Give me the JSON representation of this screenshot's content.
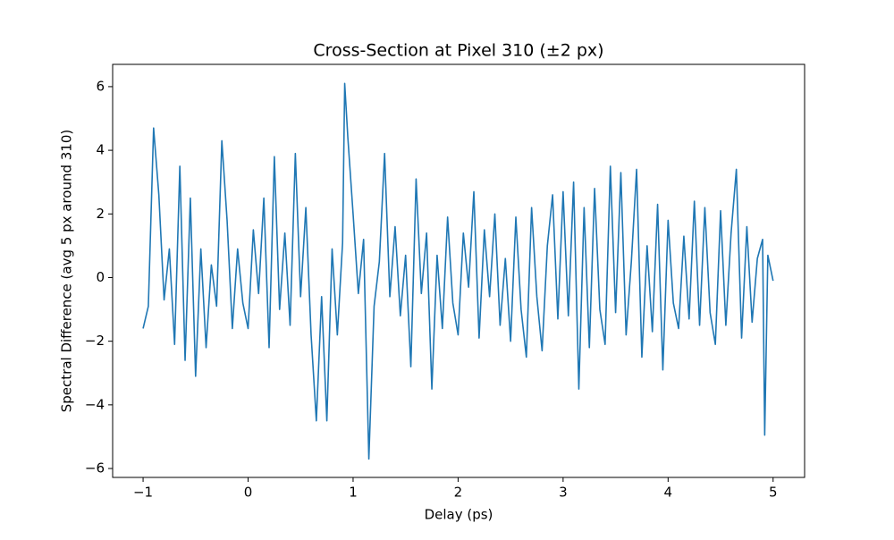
{
  "chart_data": {
    "type": "line",
    "title": "Cross-Section at Pixel 310 (±2 px)",
    "x_label": "Delay (ps)",
    "y_label": "Spectral Difference (avg 5 px around 310)",
    "x": [
      -1,
      -0.95,
      -0.9,
      -0.85,
      -0.8,
      -0.75,
      -0.7,
      -0.65,
      -0.6,
      -0.55,
      -0.5,
      -0.45,
      -0.4,
      -0.35,
      -0.3,
      -0.25,
      -0.2,
      -0.15,
      -0.1,
      -0.05,
      0,
      0.05,
      0.1,
      0.15,
      0.2,
      0.25,
      0.3,
      0.35,
      0.4,
      0.45,
      0.5,
      0.55,
      0.6,
      0.65,
      0.7,
      0.75,
      0.8,
      0.85,
      0.9,
      0.92,
      0.95,
      1.0,
      1.05,
      1.1,
      1.15,
      1.2,
      1.25,
      1.3,
      1.35,
      1.4,
      1.45,
      1.5,
      1.55,
      1.6,
      1.65,
      1.7,
      1.75,
      1.8,
      1.85,
      1.9,
      1.95,
      2.0,
      2.05,
      2.1,
      2.15,
      2.2,
      2.25,
      2.3,
      2.35,
      2.4,
      2.45,
      2.5,
      2.55,
      2.6,
      2.65,
      2.7,
      2.75,
      2.8,
      2.85,
      2.9,
      2.95,
      3.0,
      3.05,
      3.1,
      3.15,
      3.2,
      3.25,
      3.3,
      3.35,
      3.4,
      3.45,
      3.5,
      3.55,
      3.6,
      3.65,
      3.7,
      3.75,
      3.8,
      3.85,
      3.9,
      3.95,
      4.0,
      4.05,
      4.1,
      4.15,
      4.2,
      4.25,
      4.3,
      4.35,
      4.4,
      4.45,
      4.5,
      4.55,
      4.6,
      4.65,
      4.7,
      4.75,
      4.8,
      4.85,
      4.9,
      4.92,
      4.95,
      5.0
    ],
    "series": [
      {
        "color": "#1f77b4",
        "values": [
          -1.6,
          -0.9,
          4.7,
          2.6,
          -0.7,
          0.9,
          -2.1,
          3.5,
          -2.6,
          2.5,
          -3.1,
          0.9,
          -2.2,
          0.4,
          -0.9,
          4.3,
          1.8,
          -1.6,
          0.9,
          -0.8,
          -1.6,
          1.5,
          -0.5,
          2.5,
          -2.2,
          3.8,
          -1.0,
          1.4,
          -1.5,
          3.9,
          -0.6,
          2.2,
          -1.8,
          -4.5,
          -0.6,
          -4.5,
          0.9,
          -1.8,
          1.1,
          6.1,
          4.4,
          2.0,
          -0.5,
          1.2,
          -5.7,
          -0.9,
          0.5,
          3.9,
          -0.6,
          1.6,
          -1.2,
          0.7,
          -2.8,
          3.1,
          -0.5,
          1.4,
          -3.5,
          0.7,
          -1.6,
          1.9,
          -0.8,
          -1.8,
          1.4,
          -0.3,
          2.7,
          -1.9,
          1.5,
          -0.6,
          2.0,
          -1.5,
          0.6,
          -2.0,
          1.9,
          -1.0,
          -2.5,
          2.2,
          -0.6,
          -2.3,
          1.0,
          2.6,
          -1.3,
          2.7,
          -1.2,
          3.0,
          -3.5,
          2.2,
          -2.2,
          2.8,
          -1.0,
          -2.1,
          3.5,
          -1.1,
          3.3,
          -1.8,
          0.5,
          3.4,
          -2.5,
          1.0,
          -1.7,
          2.3,
          -2.9,
          1.8,
          -0.8,
          -1.6,
          1.3,
          -1.3,
          2.4,
          -1.5,
          2.2,
          -1.1,
          -2.1,
          2.1,
          -1.5,
          1.4,
          3.4,
          -1.9,
          1.6,
          -1.4,
          0.6,
          1.2,
          -4.95,
          0.7,
          -0.1
        ]
      }
    ],
    "xlim": [
      -1.29,
      5.3
    ],
    "ylim": [
      -6.28,
      6.7
    ],
    "xticks": [
      {
        "value": -1,
        "label": "−1"
      },
      0,
      1,
      2,
      3,
      4,
      5
    ],
    "yticks": [
      {
        "value": -6,
        "label": "−6"
      },
      {
        "value": -4,
        "label": "−4"
      },
      {
        "value": -2,
        "label": "−2"
      },
      0,
      2,
      4,
      6
    ]
  }
}
